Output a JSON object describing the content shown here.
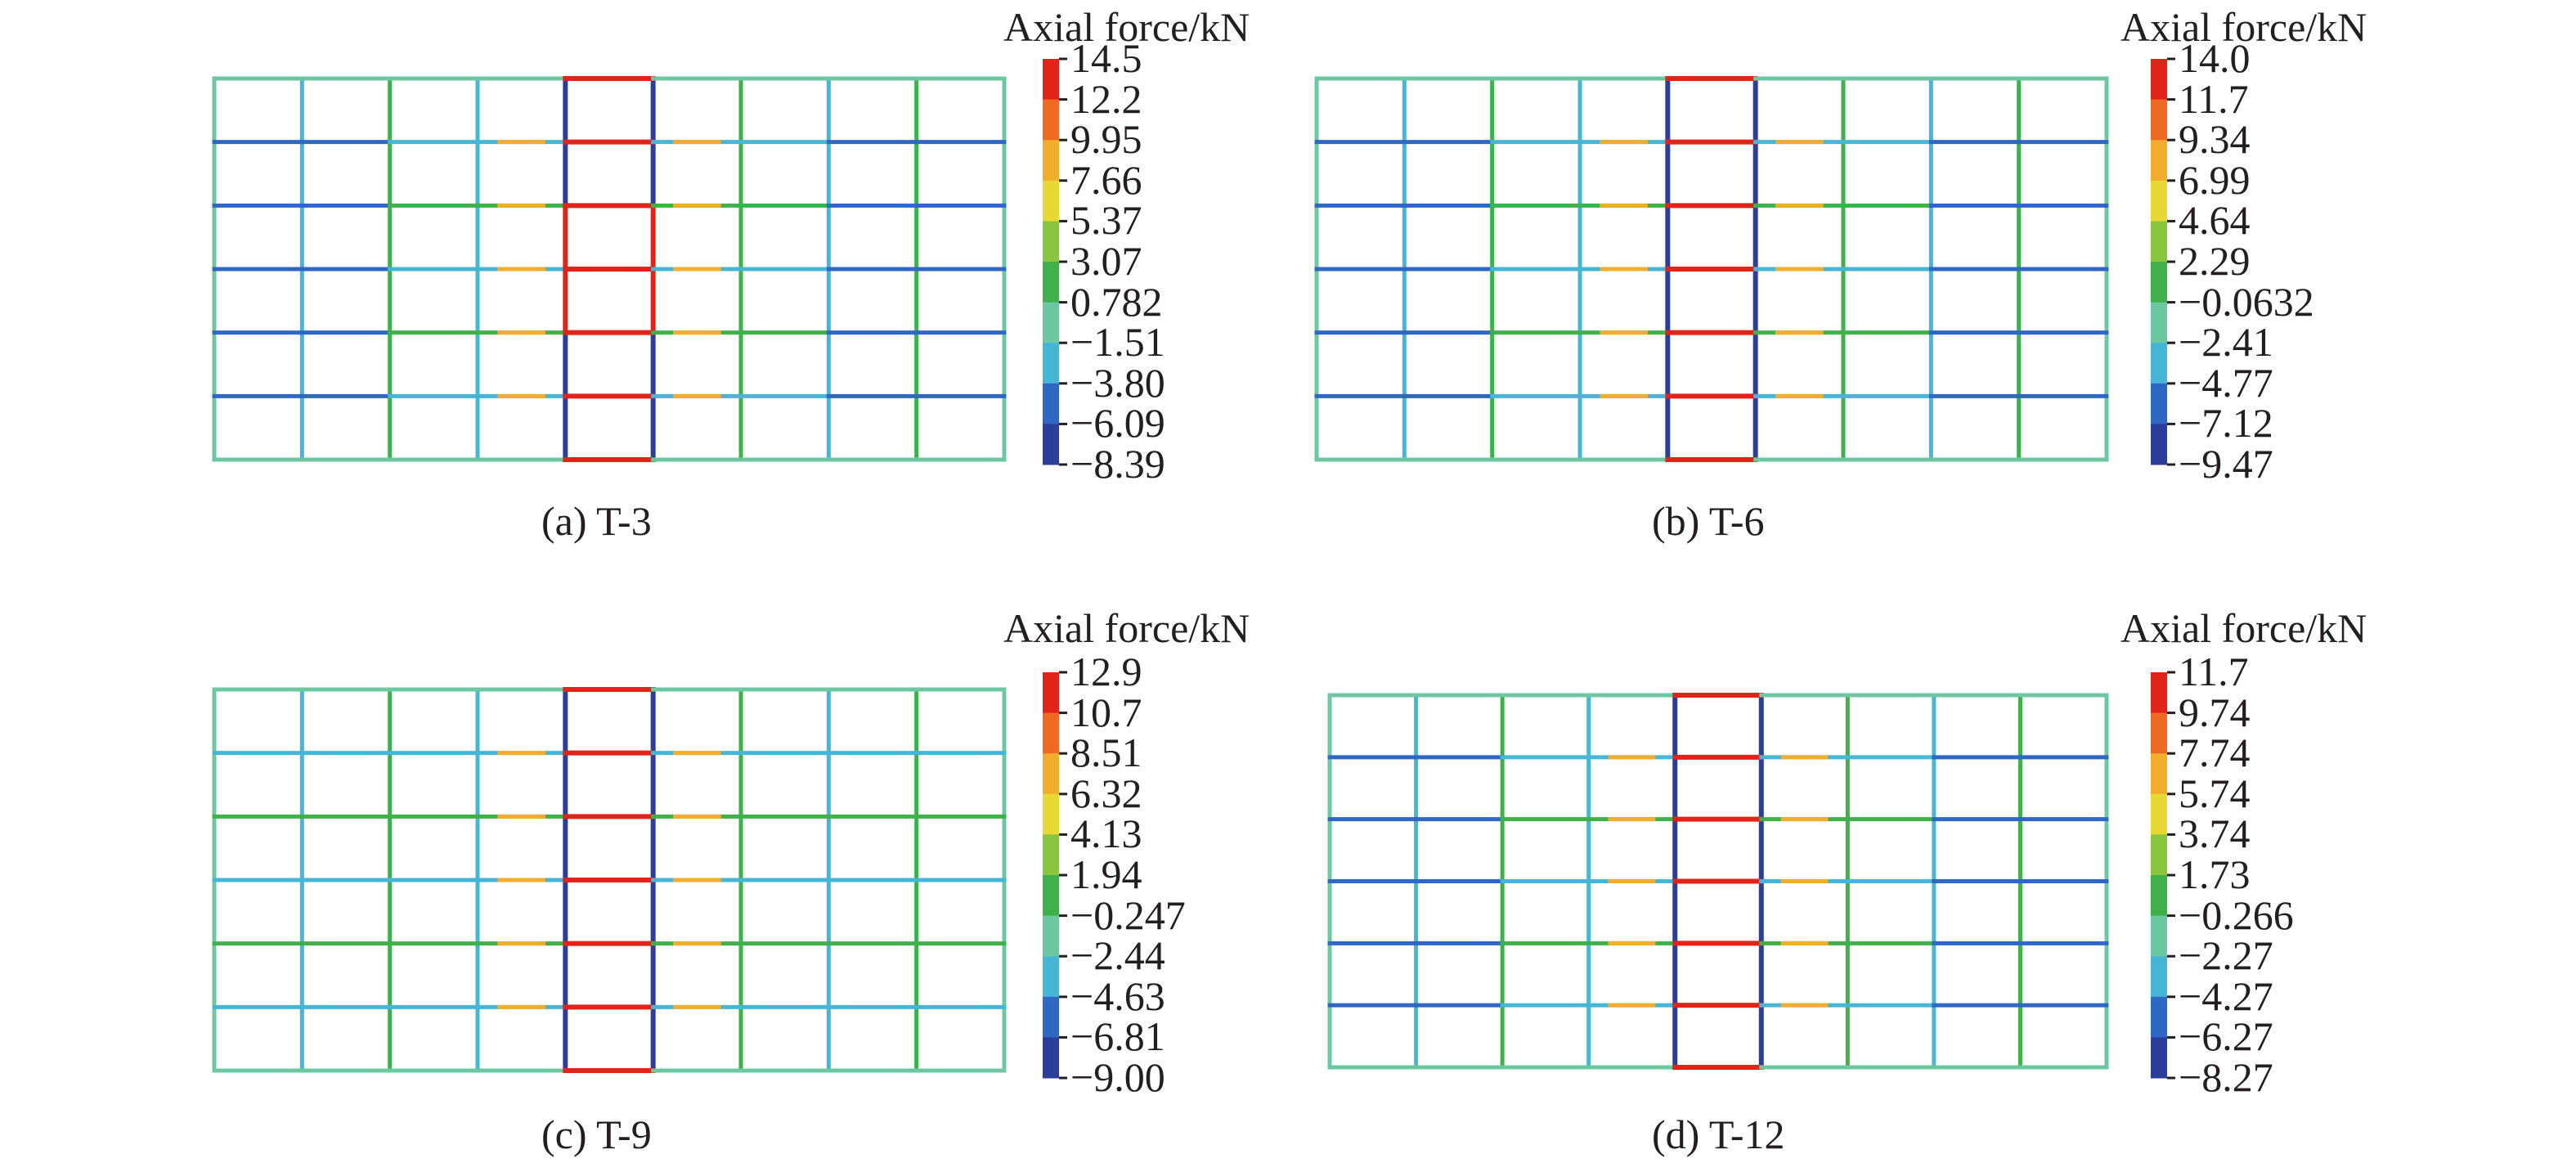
{
  "figure": {
    "colormap": [
      "#2b3f9a",
      "#2e67c4",
      "#46b6d6",
      "#6cc8a0",
      "#3eb14a",
      "#8ac53f",
      "#e8d836",
      "#f2ad2e",
      "#ef6a23",
      "#e2231a"
    ],
    "structure": {
      "bays": 9,
      "storeys": 6
    },
    "panels": [
      {
        "id": "a",
        "caption": "(a) T-3",
        "legend_title": "Axial force/kN",
        "legend_ticks": [
          "14.5",
          "12.2",
          "9.95",
          "7.66",
          "5.37",
          "3.07",
          "0.782",
          "−1.51",
          "−3.80",
          "−6.09",
          "−8.39"
        ]
      },
      {
        "id": "b",
        "caption": "(b) T-6",
        "legend_title": "Axial force/kN",
        "legend_ticks": [
          "14.0",
          "11.7",
          "9.34",
          "6.99",
          "4.64",
          "2.29",
          "−0.0632",
          "−2.41",
          "−4.77",
          "−7.12",
          "−9.47"
        ]
      },
      {
        "id": "c",
        "caption": "(c) T-9",
        "legend_title": "Axial force/kN",
        "legend_ticks": [
          "12.9",
          "10.7",
          "8.51",
          "6.32",
          "4.13",
          "1.94",
          "−0.247",
          "−2.44",
          "−4.63",
          "−6.81",
          "−9.00"
        ]
      },
      {
        "id": "d",
        "caption": "(d) T-12",
        "legend_title": "Axial force/kN",
        "legend_ticks": [
          "11.7",
          "9.74",
          "7.74",
          "5.74",
          "3.74",
          "1.73",
          "−0.266",
          "−2.27",
          "−4.27",
          "−6.27",
          "−8.27"
        ]
      }
    ]
  }
}
